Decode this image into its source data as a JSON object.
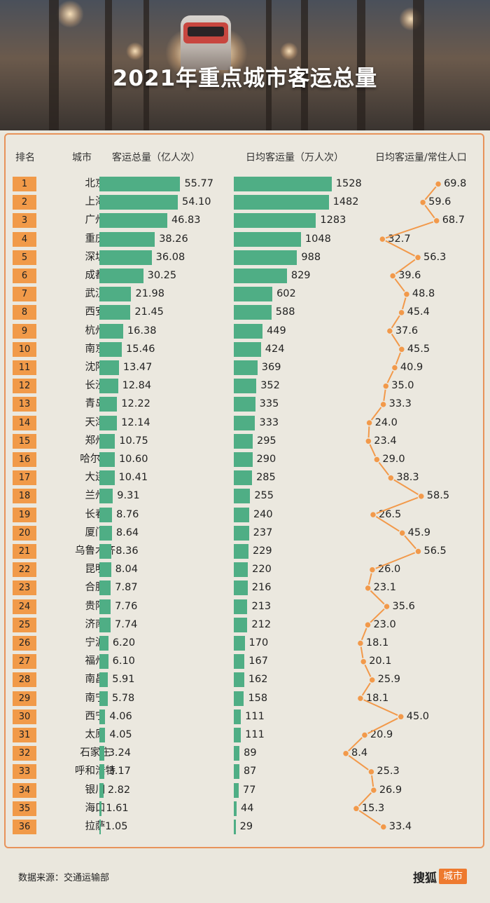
{
  "title": "2021年重点城市客运总量",
  "headers": {
    "rank": "排名",
    "city": "城市",
    "total": "客运总量（亿人次）",
    "daily": "日均客运量（万人次）",
    "ratio": "日均客运量/常住人口"
  },
  "footer": {
    "source": "数据来源：交通运输部",
    "brand": "搜狐",
    "brand_tag": "城市"
  },
  "colors": {
    "bar": "#4fae85",
    "badge": "#f19a49",
    "line": "#f2994a",
    "border": "#e8935a"
  },
  "chart_data": {
    "type": "table",
    "columns": [
      "排名",
      "城市",
      "客运总量（亿人次）",
      "日均客运量（万人次）",
      "日均客运量/常住人口"
    ],
    "rows": [
      {
        "rank": "1",
        "city": "北京",
        "total": "55.77",
        "daily": "1528",
        "ratio": "69.8"
      },
      {
        "rank": "2",
        "city": "上海",
        "total": "54.10",
        "daily": "1482",
        "ratio": "59.6"
      },
      {
        "rank": "3",
        "city": "广州",
        "total": "46.83",
        "daily": "1283",
        "ratio": "68.7"
      },
      {
        "rank": "4",
        "city": "重庆",
        "total": "38.26",
        "daily": "1048",
        "ratio": "32.7"
      },
      {
        "rank": "5",
        "city": "深圳",
        "total": "36.08",
        "daily": "988",
        "ratio": "56.3"
      },
      {
        "rank": "6",
        "city": "成都",
        "total": "30.25",
        "daily": "829",
        "ratio": "39.6"
      },
      {
        "rank": "7",
        "city": "武汉",
        "total": "21.98",
        "daily": "602",
        "ratio": "48.8"
      },
      {
        "rank": "8",
        "city": "西安",
        "total": "21.45",
        "daily": "588",
        "ratio": "45.4"
      },
      {
        "rank": "9",
        "city": "杭州",
        "total": "16.38",
        "daily": "449",
        "ratio": "37.6"
      },
      {
        "rank": "10",
        "city": "南京",
        "total": "15.46",
        "daily": "424",
        "ratio": "45.5"
      },
      {
        "rank": "11",
        "city": "沈阳",
        "total": "13.47",
        "daily": "369",
        "ratio": "40.9"
      },
      {
        "rank": "12",
        "city": "长沙",
        "total": "12.84",
        "daily": "352",
        "ratio": "35.0"
      },
      {
        "rank": "13",
        "city": "青岛",
        "total": "12.22",
        "daily": "335",
        "ratio": "33.3"
      },
      {
        "rank": "14",
        "city": "天津",
        "total": "12.14",
        "daily": "333",
        "ratio": "24.0"
      },
      {
        "rank": "15",
        "city": "郑州",
        "total": "10.75",
        "daily": "295",
        "ratio": "23.4"
      },
      {
        "rank": "16",
        "city": "哈尔滨",
        "total": "10.60",
        "daily": "290",
        "ratio": "29.0"
      },
      {
        "rank": "17",
        "city": "大连",
        "total": "10.41",
        "daily": "285",
        "ratio": "38.3"
      },
      {
        "rank": "18",
        "city": "兰州",
        "total": "9.31",
        "daily": "255",
        "ratio": "58.5"
      },
      {
        "rank": "19",
        "city": "长春",
        "total": "8.76",
        "daily": "240",
        "ratio": "26.5"
      },
      {
        "rank": "20",
        "city": "厦门",
        "total": "8.64",
        "daily": "237",
        "ratio": "45.9"
      },
      {
        "rank": "21",
        "city": "乌鲁木齐",
        "total": "8.36",
        "daily": "229",
        "ratio": "56.5"
      },
      {
        "rank": "22",
        "city": "昆明",
        "total": "8.04",
        "daily": "220",
        "ratio": "26.0"
      },
      {
        "rank": "23",
        "city": "合肥",
        "total": "7.87",
        "daily": "216",
        "ratio": "23.1"
      },
      {
        "rank": "24",
        "city": "贵阳",
        "total": "7.76",
        "daily": "213",
        "ratio": "35.6"
      },
      {
        "rank": "25",
        "city": "济南",
        "total": "7.74",
        "daily": "212",
        "ratio": "23.0"
      },
      {
        "rank": "26",
        "city": "宁波",
        "total": "6.20",
        "daily": "170",
        "ratio": "18.1"
      },
      {
        "rank": "27",
        "city": "福州",
        "total": "6.10",
        "daily": "167",
        "ratio": "20.1"
      },
      {
        "rank": "28",
        "city": "南昌",
        "total": "5.91",
        "daily": "162",
        "ratio": "25.9"
      },
      {
        "rank": "29",
        "city": "南宁",
        "total": "5.78",
        "daily": "158",
        "ratio": "18.1"
      },
      {
        "rank": "30",
        "city": "西宁",
        "total": "4.06",
        "daily": "111",
        "ratio": "45.0"
      },
      {
        "rank": "31",
        "city": "太原",
        "total": "4.05",
        "daily": "111",
        "ratio": "20.9"
      },
      {
        "rank": "32",
        "city": "石家庄",
        "total": "3.24",
        "daily": "89",
        "ratio": "8.4"
      },
      {
        "rank": "33",
        "city": "呼和浩特",
        "total": "3.17",
        "daily": "87",
        "ratio": "25.3"
      },
      {
        "rank": "34",
        "city": "银川",
        "total": "2.82",
        "daily": "77",
        "ratio": "26.9"
      },
      {
        "rank": "35",
        "city": "海口",
        "total": "1.61",
        "daily": "44",
        "ratio": "15.3"
      },
      {
        "rank": "36",
        "city": "拉萨",
        "total": "1.05",
        "daily": "29",
        "ratio": "33.4"
      }
    ]
  }
}
